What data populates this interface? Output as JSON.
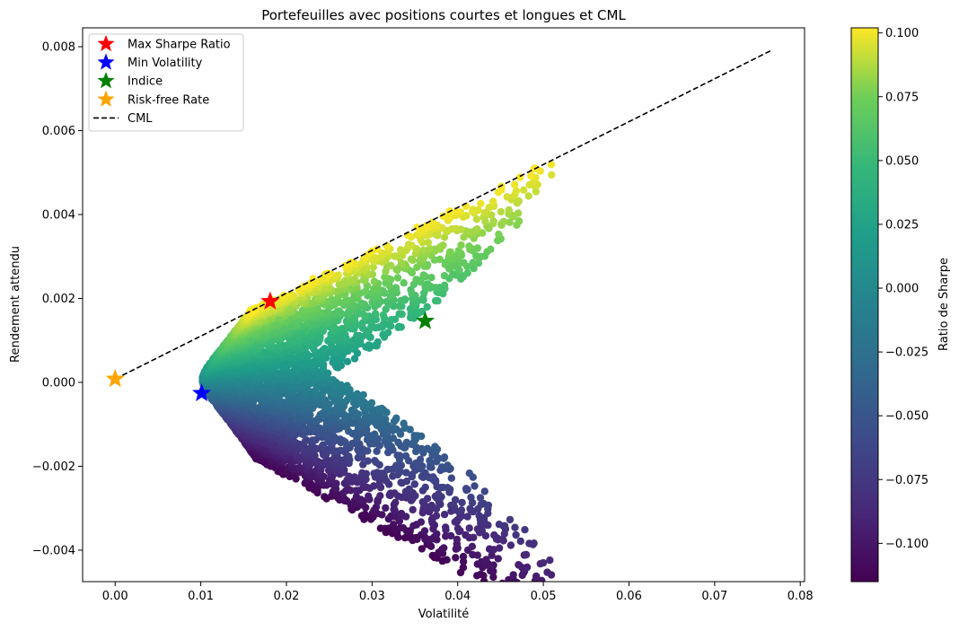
{
  "chart_data": {
    "type": "scatter",
    "title": "Portefeuilles avec positions courtes et longues et CML",
    "xlabel": "Volatilité",
    "ylabel": "Rendement attendu",
    "xlim": [
      -0.0038,
      0.0805
    ],
    "ylim": [
      -0.00475,
      0.00845
    ],
    "xticks": [
      0.0,
      0.01,
      0.02,
      0.03,
      0.04,
      0.05,
      0.06,
      0.07,
      0.08
    ],
    "xtick_labels": [
      "0.00",
      "0.01",
      "0.02",
      "0.03",
      "0.04",
      "0.05",
      "0.06",
      "0.07",
      "0.08"
    ],
    "yticks": [
      -0.004,
      -0.002,
      0.0,
      0.002,
      0.004,
      0.006,
      0.008
    ],
    "ytick_labels": [
      "−0.004",
      "−0.002",
      "0.000",
      "0.002",
      "0.004",
      "0.006",
      "0.008"
    ],
    "grid": false,
    "legend_position": "top-left",
    "colormap": "viridis",
    "colorbar": {
      "label": "Ratio de Sharpe",
      "range": [
        -0.115,
        0.102
      ],
      "ticks": [
        -0.1,
        -0.075,
        -0.05,
        -0.025,
        0.0,
        0.025,
        0.05,
        0.075,
        0.1
      ],
      "tick_labels": [
        "−0.100",
        "−0.075",
        "−0.050",
        "−0.025",
        "0.000",
        "0.025",
        "0.050",
        "0.075",
        "0.100"
      ]
    },
    "portfolio_cloud": {
      "description_points": [
        {
          "x": 0.0102,
          "y": -0.0003,
          "sharpe": -0.02
        },
        {
          "x": 0.0125,
          "y": 0.0006,
          "sharpe": 0.05
        },
        {
          "x": 0.0181,
          "y": 0.00193,
          "sharpe": 0.101
        },
        {
          "x": 0.03,
          "y": 0.003,
          "sharpe": 0.095
        },
        {
          "x": 0.0435,
          "y": 0.0041,
          "sharpe": 0.09
        },
        {
          "x": 0.05,
          "y": 0.0044,
          "sharpe": 0.085
        },
        {
          "x": 0.03,
          "y": 0.0004,
          "sharpe": 0.01
        },
        {
          "x": 0.036,
          "y": 0.0015,
          "sharpe": 0.04
        },
        {
          "x": 0.017,
          "y": -0.0019,
          "sharpe": -0.11
        },
        {
          "x": 0.025,
          "y": -0.0028,
          "sharpe": -0.1
        },
        {
          "x": 0.04,
          "y": -0.0036,
          "sharpe": -0.09
        },
        {
          "x": 0.051,
          "y": -0.0041,
          "sharpe": -0.085
        },
        {
          "x": 0.03,
          "y": -0.0012,
          "sharpe": -0.05
        }
      ],
      "point_count_approx": 6000
    },
    "markers": [
      {
        "name": "Max Sharpe Ratio",
        "x": 0.0181,
        "y": 0.00193,
        "color": "#ff0000",
        "shape": "star"
      },
      {
        "name": "Min Volatility",
        "x": 0.0101,
        "y": -0.00026,
        "color": "#0000ff",
        "shape": "star"
      },
      {
        "name": "Indice",
        "x": 0.0362,
        "y": 0.00146,
        "color": "#008000",
        "shape": "star"
      },
      {
        "name": "Risk-free Rate",
        "x": 0.0,
        "y": 8e-05,
        "color": "#ffa500",
        "shape": "star"
      }
    ],
    "cml": {
      "name": "CML",
      "x": [
        0.0,
        0.0765
      ],
      "y": [
        8e-05,
        0.0079
      ],
      "color": "#000000",
      "style": "dashed"
    },
    "legend": [
      "Max Sharpe Ratio",
      "Min Volatility",
      "Indice",
      "Risk-free Rate",
      "CML"
    ]
  }
}
